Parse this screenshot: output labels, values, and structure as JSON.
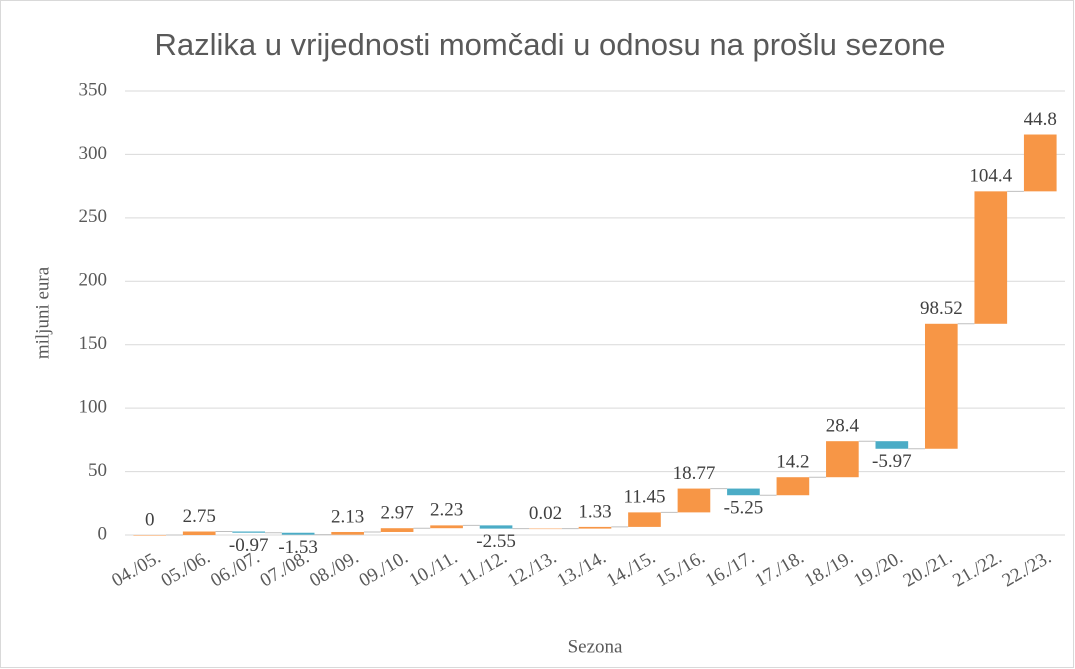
{
  "chart_data": {
    "type": "waterfall",
    "title": "Razlika u vrijednosti momčadi u odnosu na prošlu sezone",
    "x_label": "Sezona",
    "y_label": "miljuni eura",
    "categories": [
      "04./05.",
      "05./06.",
      "06./07.",
      "07./08.",
      "08./09.",
      "09./10.",
      "10./11.",
      "11./12.",
      "12./13.",
      "13./14.",
      "14./15.",
      "15./16.",
      "16./17.",
      "17./18.",
      "18./19.",
      "19./20.",
      "20./21.",
      "21./22.",
      "22./23."
    ],
    "values": [
      0,
      2.75,
      -0.97,
      -1.53,
      2.13,
      2.97,
      2.23,
      -2.55,
      0.02,
      1.33,
      11.45,
      18.77,
      -5.25,
      14.2,
      28.4,
      -5.97,
      98.52,
      104.4,
      44.8
    ],
    "increase_color": "#f79646",
    "decrease_color": "#4bacc6",
    "ylim": [
      0,
      350
    ],
    "yticks": [
      0,
      50,
      100,
      150,
      200,
      250,
      300,
      350
    ],
    "grid": true
  }
}
